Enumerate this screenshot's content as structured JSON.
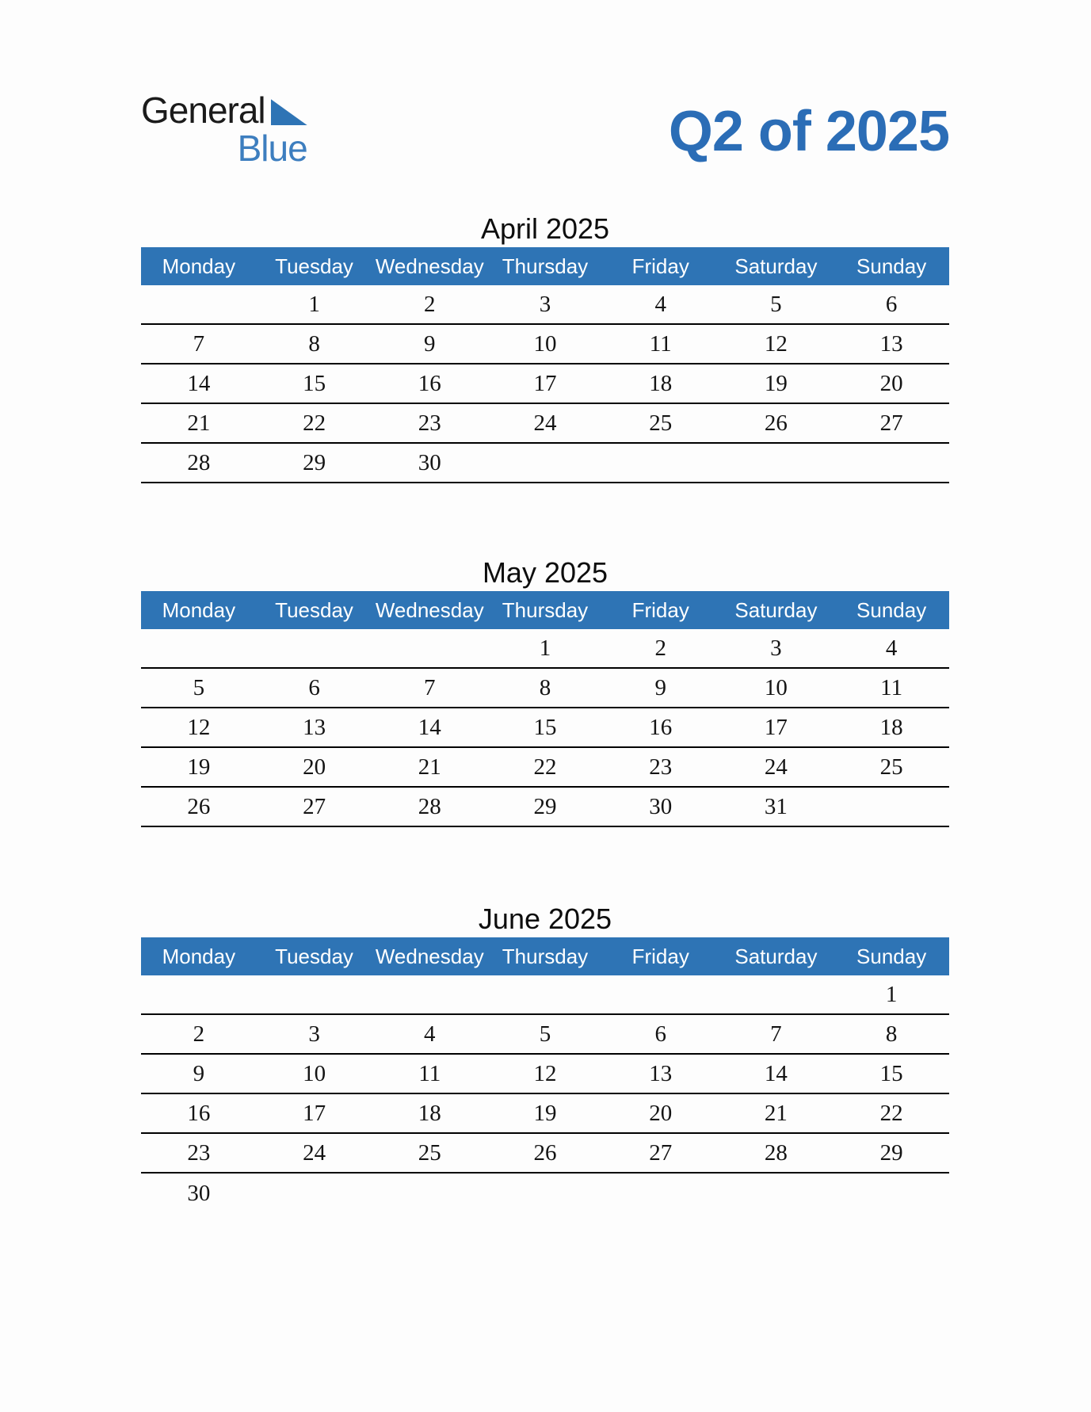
{
  "logo": {
    "word_top": "General",
    "word_bottom": "Blue"
  },
  "header": {
    "title": "Q2 of 2025"
  },
  "weekdays": [
    "Monday",
    "Tuesday",
    "Wednesday",
    "Thursday",
    "Friday",
    "Saturday",
    "Sunday"
  ],
  "months": [
    {
      "id": "april",
      "title": "April 2025",
      "bottom_border": true,
      "rows": [
        [
          "",
          "1",
          "2",
          "3",
          "4",
          "5",
          "6"
        ],
        [
          "7",
          "8",
          "9",
          "10",
          "11",
          "12",
          "13"
        ],
        [
          "14",
          "15",
          "16",
          "17",
          "18",
          "19",
          "20"
        ],
        [
          "21",
          "22",
          "23",
          "24",
          "25",
          "26",
          "27"
        ],
        [
          "28",
          "29",
          "30",
          "",
          "",
          "",
          ""
        ]
      ]
    },
    {
      "id": "may",
      "title": "May 2025",
      "bottom_border": true,
      "rows": [
        [
          "",
          "",
          "",
          "1",
          "2",
          "3",
          "4"
        ],
        [
          "5",
          "6",
          "7",
          "8",
          "9",
          "10",
          "11"
        ],
        [
          "12",
          "13",
          "14",
          "15",
          "16",
          "17",
          "18"
        ],
        [
          "19",
          "20",
          "21",
          "22",
          "23",
          "24",
          "25"
        ],
        [
          "26",
          "27",
          "28",
          "29",
          "30",
          "31",
          ""
        ]
      ]
    },
    {
      "id": "june",
      "title": "June 2025",
      "bottom_border": false,
      "rows": [
        [
          "",
          "",
          "",
          "",
          "",
          "",
          "1"
        ],
        [
          "2",
          "3",
          "4",
          "5",
          "6",
          "7",
          "8"
        ],
        [
          "9",
          "10",
          "11",
          "12",
          "13",
          "14",
          "15"
        ],
        [
          "16",
          "17",
          "18",
          "19",
          "20",
          "21",
          "22"
        ],
        [
          "23",
          "24",
          "25",
          "26",
          "27",
          "28",
          "29"
        ],
        [
          "30",
          "",
          "",
          "",
          "",
          "",
          ""
        ]
      ]
    }
  ],
  "colors": {
    "header_blue": "#2E74B5",
    "title_blue": "#2B6DB6",
    "logo_blue": "#3D7EBF",
    "triangle_blue": "#2E74B5",
    "line_black": "#000000"
  }
}
